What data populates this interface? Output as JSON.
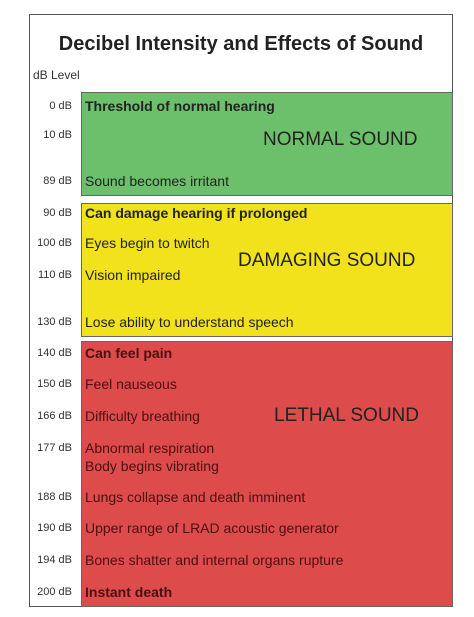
{
  "title": "Decibel Intensity and Effects of Sound",
  "level_header": "dB Level",
  "zones": {
    "normal": {
      "label": "NORMAL SOUND",
      "color": "#6cc06c"
    },
    "damaging": {
      "label": "DAMAGING SOUND",
      "color": "#f2e21c"
    },
    "lethal": {
      "label": "LETHAL SOUND",
      "color": "#dd4b4b"
    }
  },
  "rows": [
    {
      "db": "0 dB",
      "effect": "Threshold of normal hearing",
      "bold": true
    },
    {
      "db": "10 dB",
      "effect": ""
    },
    {
      "db": "89 dB",
      "effect": "Sound becomes irritant"
    },
    {
      "db": "90 dB",
      "effect": "Can damage hearing if prolonged",
      "bold": true
    },
    {
      "db": "100 dB",
      "effect": "Eyes begin to twitch"
    },
    {
      "db": "110 dB",
      "effect": "Vision impaired"
    },
    {
      "db": "130 dB",
      "effect": "Lose ability to understand speech"
    },
    {
      "db": "140 dB",
      "effect": "Can feel pain",
      "bold": true
    },
    {
      "db": "150 dB",
      "effect": "Feel nauseous"
    },
    {
      "db": "166 dB",
      "effect": "Difficulty breathing"
    },
    {
      "db": "177 dB",
      "effect": "Abnormal respiration",
      "effect2": "Body begins vibrating"
    },
    {
      "db": "188 dB",
      "effect": "Lungs collapse and death imminent"
    },
    {
      "db": "190 dB",
      "effect": "Upper range of LRAD acoustic generator"
    },
    {
      "db": "194 dB",
      "effect": "Bones shatter and  internal organs rupture"
    },
    {
      "db": "200 dB",
      "effect": "Instant death",
      "bold": true
    }
  ]
}
